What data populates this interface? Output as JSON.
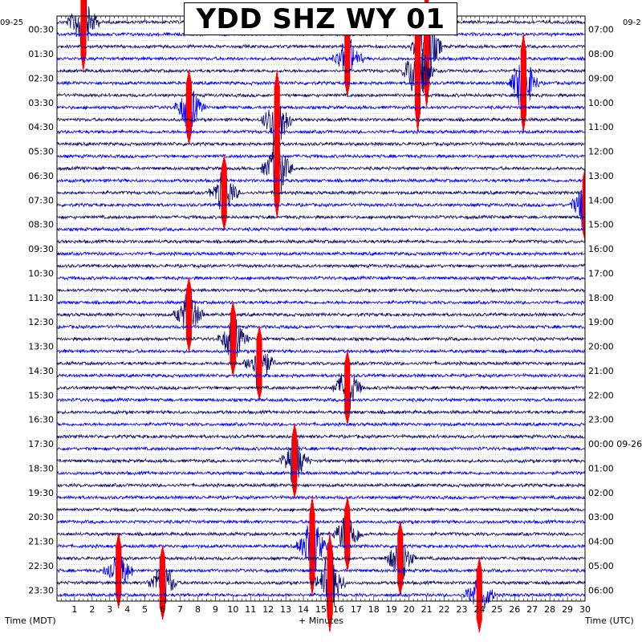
{
  "chart_data": {
    "type": "helicorder",
    "title": "YDD SHZ WY 01",
    "xlabel": "+ Minutes",
    "left_axis_label": "Time (MDT)",
    "right_axis_label": "Time (UTC)",
    "left_date_label": "09-25",
    "right_date_label": "09-2",
    "xlim": [
      0,
      30
    ],
    "x_ticks": [
      "1",
      "2",
      "3",
      "4",
      "5",
      "6",
      "7",
      "8",
      "9",
      "10",
      "11",
      "12",
      "13",
      "14",
      "15",
      "16",
      "17",
      "18",
      "19",
      "20",
      "21",
      "22",
      "23",
      "24",
      "25",
      "26",
      "27",
      "28",
      "29",
      "30"
    ],
    "rows_per_hour": 2,
    "row_minutes": 30,
    "left_labels": [
      "00:30",
      "01:30",
      "02:30",
      "03:30",
      "04:30",
      "05:30",
      "06:30",
      "07:30",
      "08:30",
      "09:30",
      "10:30",
      "11:30",
      "12:30",
      "13:30",
      "14:30",
      "15:30",
      "16:30",
      "17:30",
      "18:30",
      "19:30",
      "20:30",
      "21:30",
      "22:30",
      "23:30"
    ],
    "right_labels": [
      "07:00",
      "08:00",
      "09:00",
      "10:00",
      "11:00",
      "12:00",
      "13:00",
      "14:00",
      "15:00",
      "16:00",
      "17:00",
      "18:00",
      "19:00",
      "20:00",
      "21:00",
      "22:00",
      "23:00",
      "00:00 09-26",
      "01:00",
      "02:00",
      "03:00",
      "04:00",
      "05:00",
      "06:00"
    ],
    "trace_colors": [
      "#0a0a6e",
      "#0000ff"
    ],
    "clip_color": "#ff0000",
    "grid": true,
    "events": [
      {
        "row": 0,
        "minute": 1.5,
        "amp": 4
      },
      {
        "row": 2,
        "minute": 21.0,
        "amp": 5
      },
      {
        "row": 3,
        "minute": 16.5,
        "amp": 3
      },
      {
        "row": 4,
        "minute": 20.5,
        "amp": 5
      },
      {
        "row": 5,
        "minute": 26.5,
        "amp": 4
      },
      {
        "row": 7,
        "minute": 7.5,
        "amp": 3
      },
      {
        "row": 8,
        "minute": 12.5,
        "amp": 4
      },
      {
        "row": 12,
        "minute": 12.5,
        "amp": 4
      },
      {
        "row": 14,
        "minute": 9.5,
        "amp": 3
      },
      {
        "row": 15,
        "minute": 30.0,
        "amp": 3
      },
      {
        "row": 24,
        "minute": 7.5,
        "amp": 3
      },
      {
        "row": 26,
        "minute": 10.0,
        "amp": 3
      },
      {
        "row": 28,
        "minute": 11.5,
        "amp": 3
      },
      {
        "row": 30,
        "minute": 16.5,
        "amp": 3
      },
      {
        "row": 36,
        "minute": 13.5,
        "amp": 3
      },
      {
        "row": 42,
        "minute": 16.5,
        "amp": 3
      },
      {
        "row": 43,
        "minute": 14.5,
        "amp": 4
      },
      {
        "row": 44,
        "minute": 19.5,
        "amp": 3
      },
      {
        "row": 45,
        "minute": 3.5,
        "amp": 3
      },
      {
        "row": 46,
        "minute": 6.0,
        "amp": 3
      },
      {
        "row": 46,
        "minute": 15.5,
        "amp": 4
      },
      {
        "row": 47,
        "minute": 24.0,
        "amp": 3
      }
    ]
  }
}
